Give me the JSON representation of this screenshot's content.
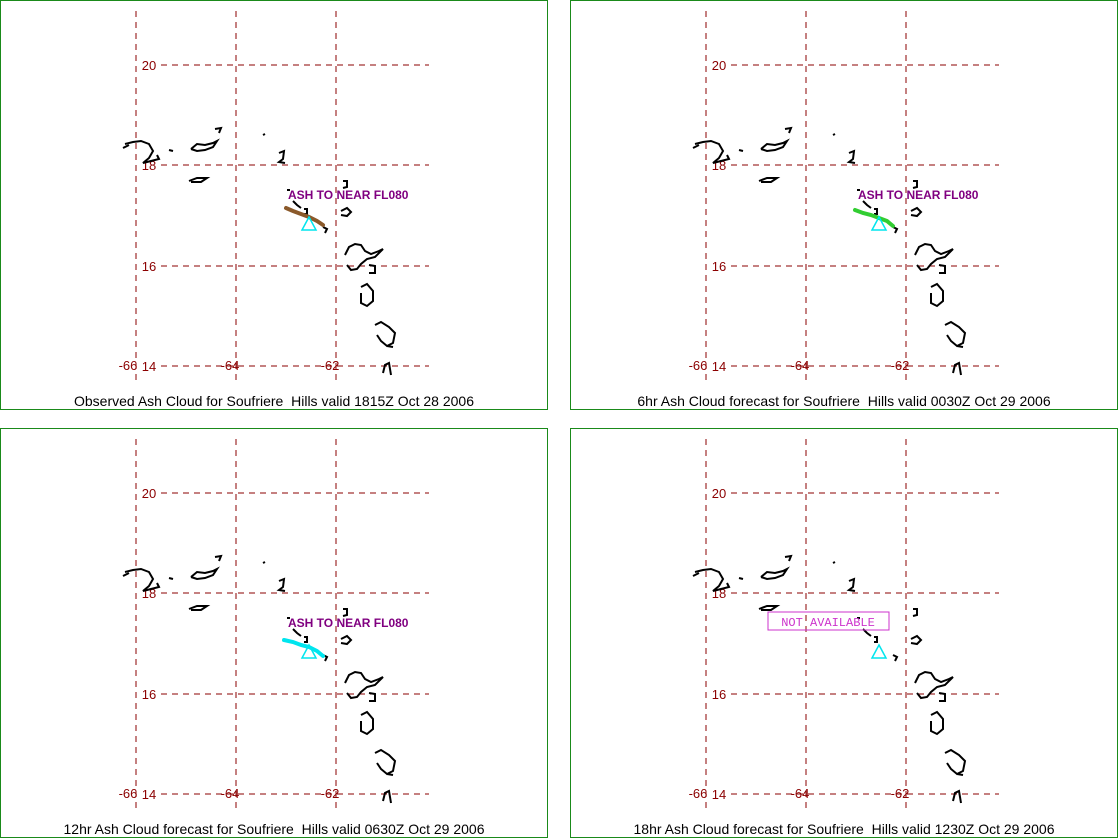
{
  "grid": {
    "lat_labels": [
      "20",
      "18",
      "16",
      "14"
    ],
    "lon_labels": [
      "-66",
      "-64",
      "-62"
    ],
    "color": "#8b0000"
  },
  "panels": [
    {
      "caption": "Observed Ash Cloud for Soufriere  Hills valid 1815Z Oct 28 2006",
      "annotation": "ASH TO NEAR FL080",
      "ash_color": "#8b5a2b"
    },
    {
      "caption": "6hr Ash Cloud forecast for Soufriere  Hills valid 0030Z Oct 29 2006",
      "annotation": "ASH TO NEAR FL080",
      "ash_color": "#32cd32"
    },
    {
      "caption": "12hr Ash Cloud forecast for Soufriere  Hills valid 0630Z Oct 29 2006",
      "annotation": "ASH TO NEAR FL080",
      "ash_color": "#00e5ee"
    },
    {
      "caption": "18hr Ash Cloud forecast for Soufriere  Hills valid 1230Z Oct 29 2006",
      "annotation": "NOT AVAILABLE",
      "ash_color": ""
    }
  ],
  "colors": {
    "panel_border": "#1a8a1a",
    "annotation": "#800080",
    "not_available": "#cc33cc",
    "volcano_marker": "#00e5ee",
    "coastline": "#000000"
  }
}
